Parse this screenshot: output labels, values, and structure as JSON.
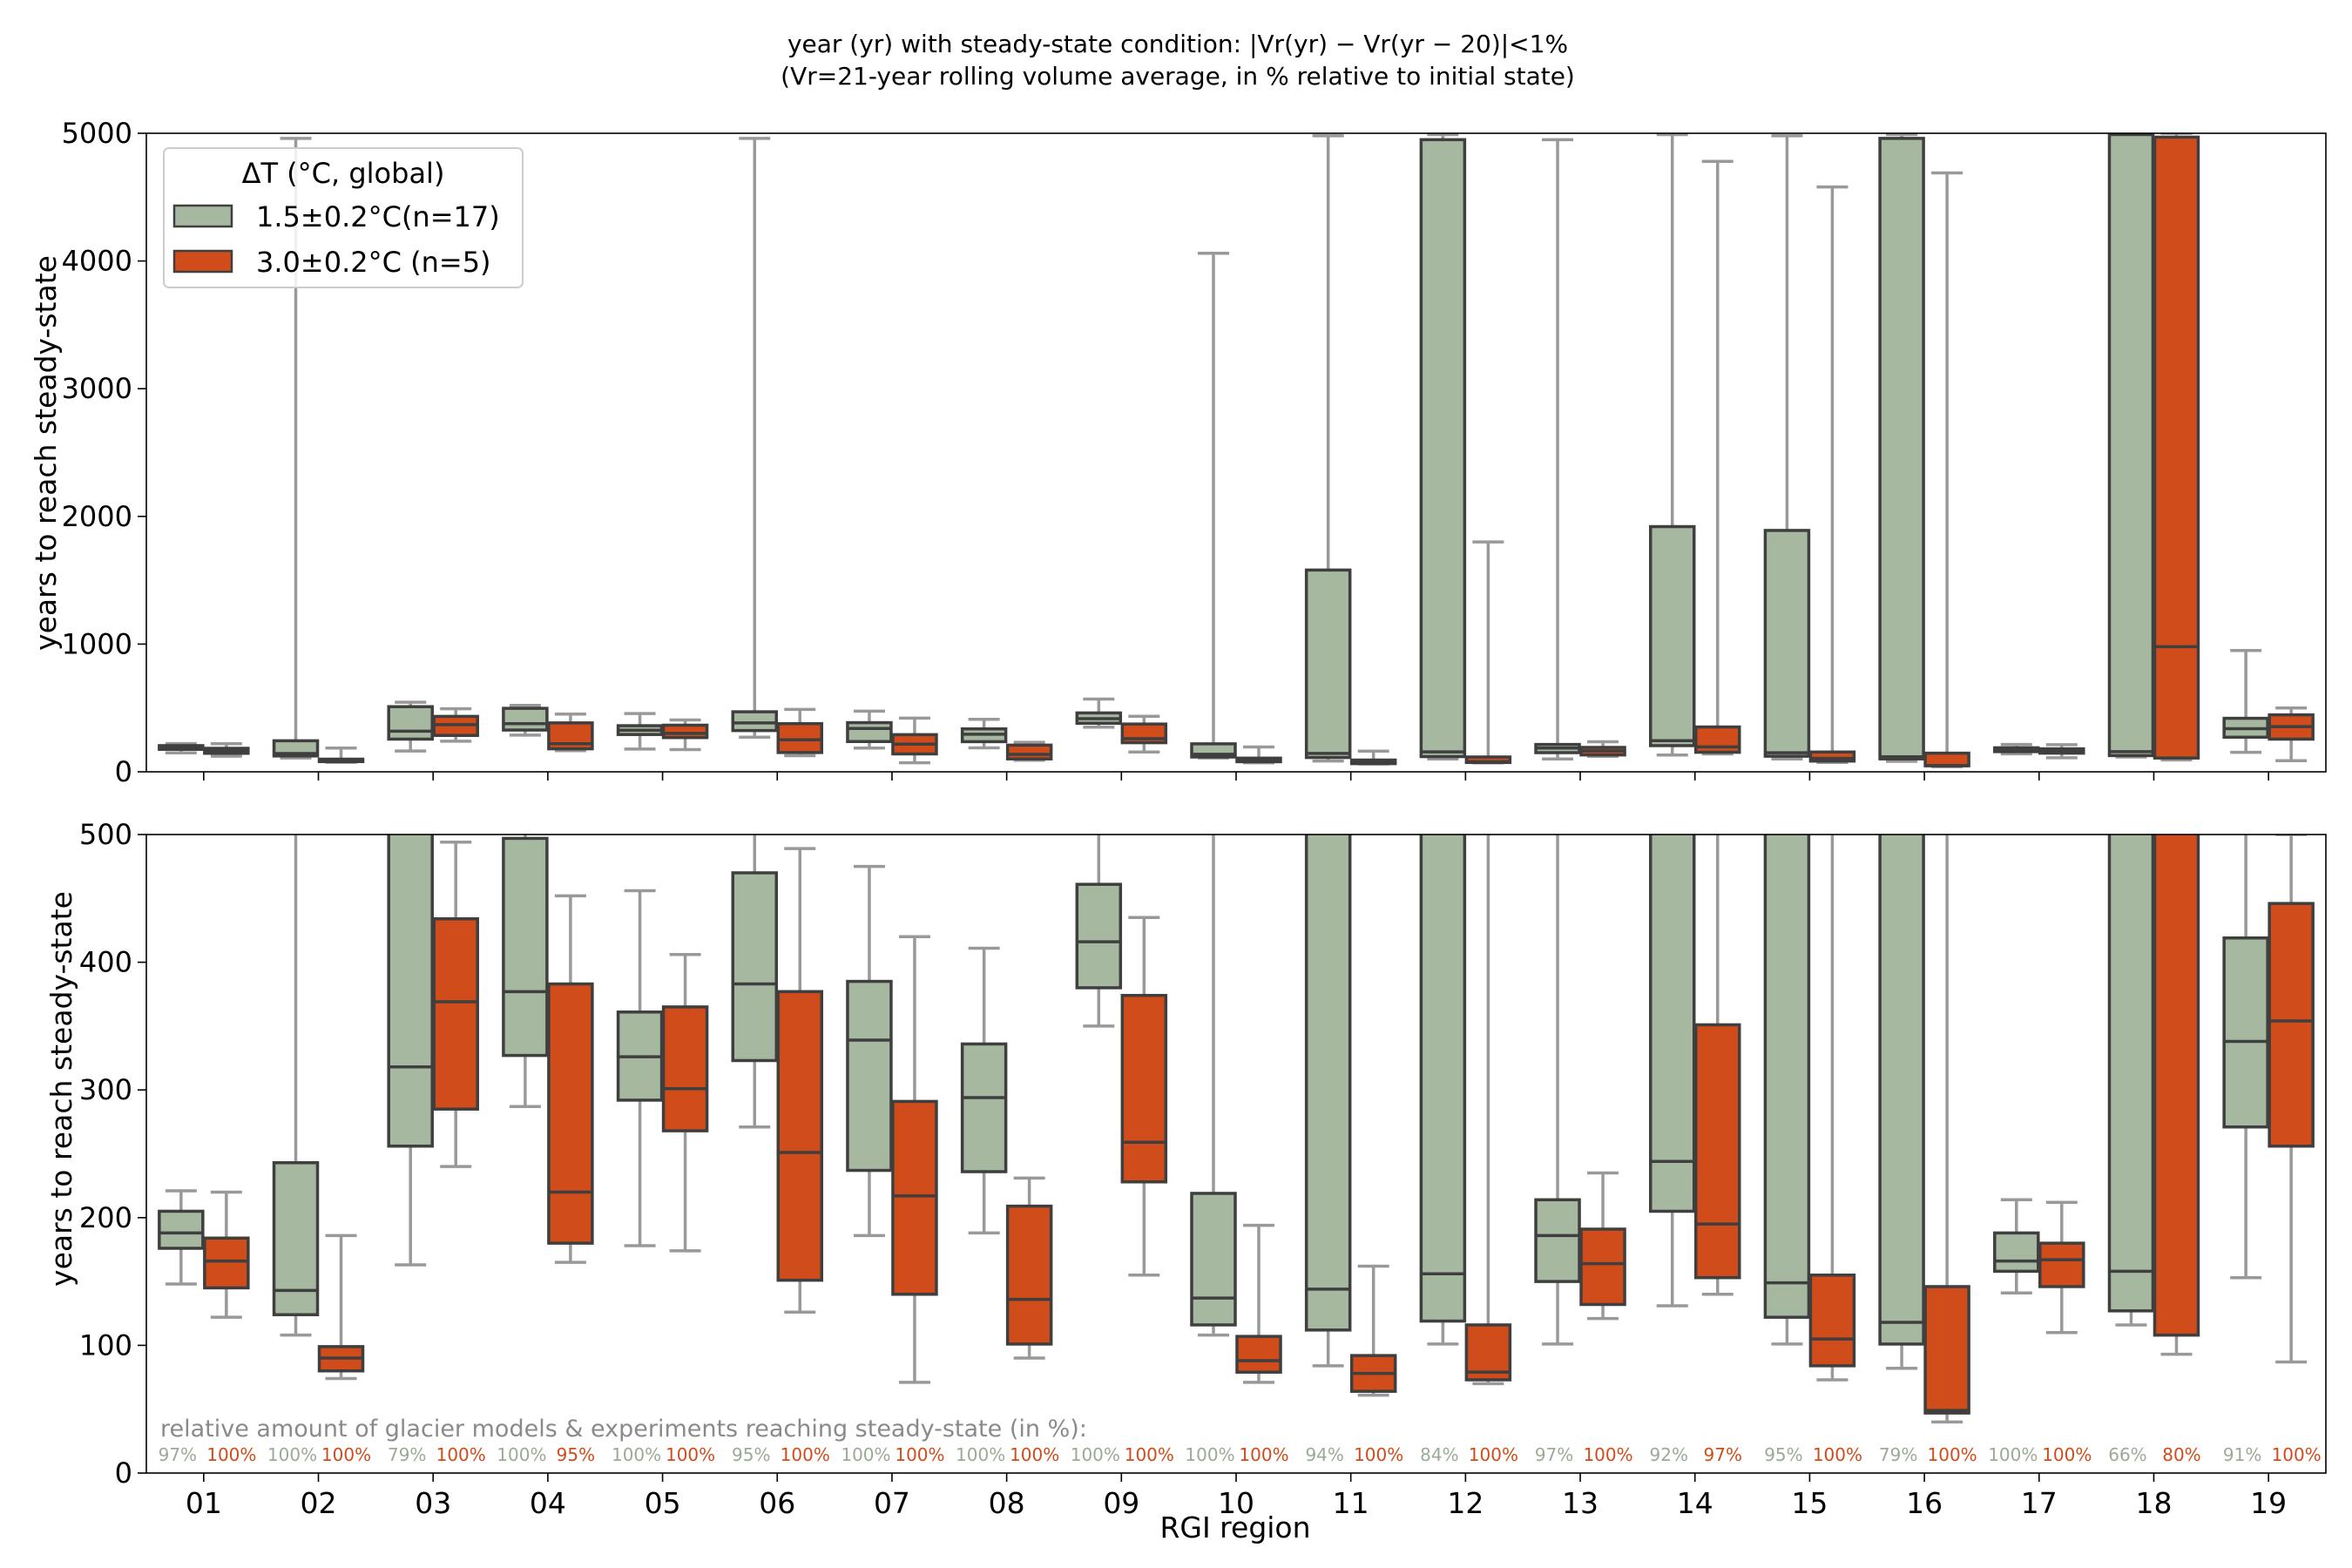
{
  "chart_data": {
    "type": "box",
    "title_line1": "year (yr) with steady-state condition:  |Vr(yr) − Vr(yr − 20)|<1%",
    "title_line2": "(Vr=21-year rolling volume average, in % relative to initial state)",
    "xlabel": "RGI region",
    "ylabel_top": "years to reach steady-state",
    "ylabel_bottom": "years to reach steady-state",
    "ylim_top": [
      0,
      5000
    ],
    "ylim_bottom": [
      0,
      500
    ],
    "yticks_top": [
      "0",
      "1000",
      "2000",
      "3000",
      "4000",
      "5000"
    ],
    "yticks_bottom": [
      "0",
      "100",
      "200",
      "300",
      "400",
      "500"
    ],
    "categories": [
      "01",
      "02",
      "03",
      "04",
      "05",
      "06",
      "07",
      "08",
      "09",
      "10",
      "11",
      "12",
      "13",
      "14",
      "15",
      "16",
      "17",
      "18",
      "19"
    ],
    "legend": {
      "title": "ΔT (°C, global)",
      "placement": "upper left (top panel)"
    },
    "colors": {
      "series_1": "#a7b8a0",
      "series_2": "#d04c1a",
      "edge": "#3f3f3f",
      "whisker": "#999999",
      "series_1_text": "#9aab95",
      "series_2_text": "#d04c1a"
    },
    "series": [
      {
        "name": "1.5±0.2°C(n=17)",
        "boxes": [
          {
            "wlo": 148,
            "q1": 176,
            "med": 188,
            "q3": 205,
            "whi": 221
          },
          {
            "wlo": 108,
            "q1": 124,
            "med": 143,
            "q3": 243,
            "whi": 4960
          },
          {
            "wlo": 163,
            "q1": 256,
            "med": 318,
            "q3": 510,
            "whi": 545
          },
          {
            "wlo": 287,
            "q1": 327,
            "med": 377,
            "q3": 497,
            "whi": 520
          },
          {
            "wlo": 178,
            "q1": 292,
            "med": 326,
            "q3": 361,
            "whi": 456
          },
          {
            "wlo": 271,
            "q1": 323,
            "med": 383,
            "q3": 470,
            "whi": 4960
          },
          {
            "wlo": 186,
            "q1": 237,
            "med": 339,
            "q3": 385,
            "whi": 475
          },
          {
            "wlo": 188,
            "q1": 236,
            "med": 294,
            "q3": 336,
            "whi": 411
          },
          {
            "wlo": 350,
            "q1": 380,
            "med": 416,
            "q3": 461,
            "whi": 570
          },
          {
            "wlo": 108,
            "q1": 116,
            "med": 137,
            "q3": 219,
            "whi": 4060
          },
          {
            "wlo": 84,
            "q1": 112,
            "med": 144,
            "q3": 1580,
            "whi": 4980
          },
          {
            "wlo": 101,
            "q1": 119,
            "med": 156,
            "q3": 4950,
            "whi": 4990
          },
          {
            "wlo": 101,
            "q1": 150,
            "med": 186,
            "q3": 214,
            "whi": 4950
          },
          {
            "wlo": 131,
            "q1": 205,
            "med": 244,
            "q3": 1920,
            "whi": 4990
          },
          {
            "wlo": 101,
            "q1": 122,
            "med": 149,
            "q3": 1890,
            "whi": 4980
          },
          {
            "wlo": 82,
            "q1": 101,
            "med": 118,
            "q3": 4960,
            "whi": 4990
          },
          {
            "wlo": 141,
            "q1": 158,
            "med": 166,
            "q3": 188,
            "whi": 214
          },
          {
            "wlo": 116,
            "q1": 127,
            "med": 158,
            "q3": 4990,
            "whi": 5000
          },
          {
            "wlo": 153,
            "q1": 271,
            "med": 338,
            "q3": 419,
            "whi": 950
          }
        ],
        "reached_pct": [
          "97%",
          "100%",
          "79%",
          "100%",
          "100%",
          "95%",
          "100%",
          "100%",
          "100%",
          "100%",
          "94%",
          "84%",
          "97%",
          "92%",
          "95%",
          "79%",
          "100%",
          "66%",
          "91%"
        ]
      },
      {
        "name": "3.0±0.2°C (n=5)",
        "boxes": [
          {
            "wlo": 122,
            "q1": 145,
            "med": 166,
            "q3": 184,
            "whi": 220
          },
          {
            "wlo": 74,
            "q1": 80,
            "med": 90,
            "q3": 99,
            "whi": 186
          },
          {
            "wlo": 240,
            "q1": 285,
            "med": 369,
            "q3": 434,
            "whi": 494
          },
          {
            "wlo": 165,
            "q1": 180,
            "med": 220,
            "q3": 383,
            "whi": 452
          },
          {
            "wlo": 174,
            "q1": 268,
            "med": 301,
            "q3": 365,
            "whi": 406
          },
          {
            "wlo": 126,
            "q1": 151,
            "med": 251,
            "q3": 377,
            "whi": 489
          },
          {
            "wlo": 71,
            "q1": 140,
            "med": 217,
            "q3": 291,
            "whi": 420
          },
          {
            "wlo": 90,
            "q1": 101,
            "med": 136,
            "q3": 209,
            "whi": 231
          },
          {
            "wlo": 155,
            "q1": 228,
            "med": 259,
            "q3": 374,
            "whi": 435
          },
          {
            "wlo": 71,
            "q1": 79,
            "med": 88,
            "q3": 107,
            "whi": 194
          },
          {
            "wlo": 61,
            "q1": 64,
            "med": 78,
            "q3": 92,
            "whi": 162
          },
          {
            "wlo": 70,
            "q1": 73,
            "med": 79,
            "q3": 116,
            "whi": 1800
          },
          {
            "wlo": 121,
            "q1": 132,
            "med": 164,
            "q3": 191,
            "whi": 235
          },
          {
            "wlo": 140,
            "q1": 153,
            "med": 195,
            "q3": 351,
            "whi": 4780
          },
          {
            "wlo": 73,
            "q1": 84,
            "med": 105,
            "q3": 155,
            "whi": 4580
          },
          {
            "wlo": 40,
            "q1": 47,
            "med": 49,
            "q3": 146,
            "whi": 4690
          },
          {
            "wlo": 110,
            "q1": 146,
            "med": 167,
            "q3": 180,
            "whi": 212
          },
          {
            "wlo": 93,
            "q1": 108,
            "med": 980,
            "q3": 4970,
            "whi": 5000
          },
          {
            "wlo": 87,
            "q1": 256,
            "med": 354,
            "q3": 446,
            "whi": 500
          }
        ],
        "reached_pct": [
          "100%",
          "100%",
          "100%",
          "95%",
          "100%",
          "100%",
          "100%",
          "100%",
          "100%",
          "100%",
          "100%",
          "100%",
          "100%",
          "97%",
          "100%",
          "100%",
          "100%",
          "80%",
          "100%"
        ]
      }
    ],
    "annotation": "relative amount of glacier models & experiments reaching steady-state (in %):",
    "grid": false
  }
}
